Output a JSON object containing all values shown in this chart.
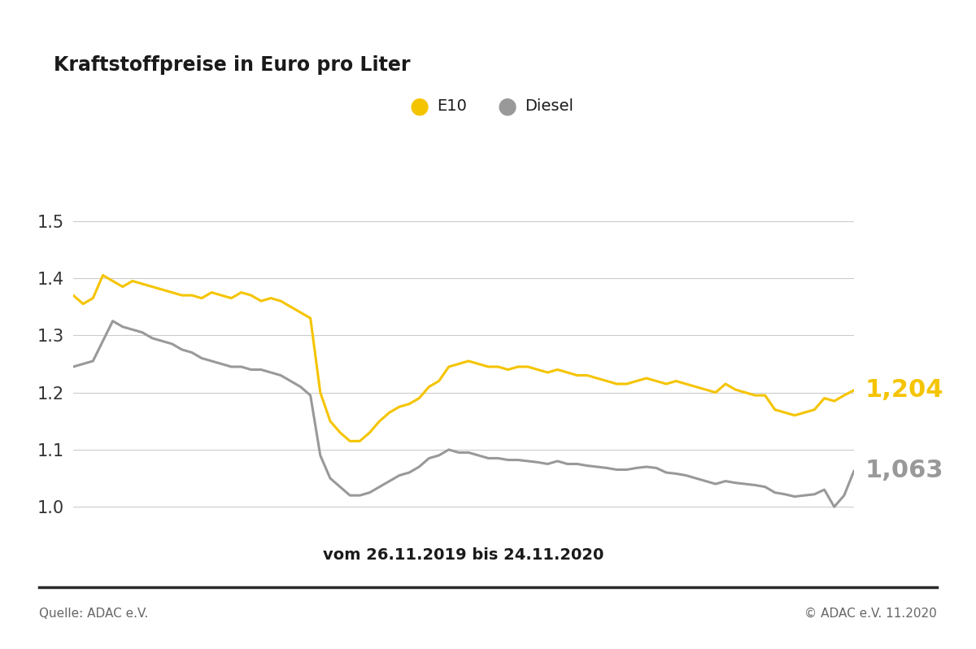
{
  "title": "Kraftstoffpreise in Euro pro Liter",
  "xlabel": "vom 26.11.2019 bis 24.11.2020",
  "legend_e10": "E10",
  "legend_diesel": "Diesel",
  "e10_color": "#F5C400",
  "diesel_color": "#999999",
  "background_color": "#ffffff",
  "ylim": [
    0.95,
    1.58
  ],
  "yticks": [
    1.0,
    1.1,
    1.2,
    1.3,
    1.4,
    1.5
  ],
  "e10_final_label": "1,204",
  "diesel_final_label": "1,063",
  "source_left": "Quelle: ADAC e.V.",
  "source_right": "© ADAC e.V. 11.2020",
  "e10_values": [
    1.37,
    1.355,
    1.365,
    1.405,
    1.395,
    1.385,
    1.395,
    1.39,
    1.385,
    1.38,
    1.375,
    1.37,
    1.37,
    1.365,
    1.375,
    1.37,
    1.365,
    1.375,
    1.37,
    1.36,
    1.365,
    1.36,
    1.35,
    1.34,
    1.33,
    1.2,
    1.15,
    1.13,
    1.115,
    1.115,
    1.13,
    1.15,
    1.165,
    1.175,
    1.18,
    1.19,
    1.21,
    1.22,
    1.245,
    1.25,
    1.255,
    1.25,
    1.245,
    1.245,
    1.24,
    1.245,
    1.245,
    1.24,
    1.235,
    1.24,
    1.235,
    1.23,
    1.23,
    1.225,
    1.22,
    1.215,
    1.215,
    1.22,
    1.225,
    1.22,
    1.215,
    1.22,
    1.215,
    1.21,
    1.205,
    1.2,
    1.215,
    1.205,
    1.2,
    1.195,
    1.195,
    1.17,
    1.165,
    1.16,
    1.165,
    1.17,
    1.19,
    1.185,
    1.195,
    1.204
  ],
  "diesel_values": [
    1.245,
    1.25,
    1.255,
    1.29,
    1.325,
    1.315,
    1.31,
    1.305,
    1.295,
    1.29,
    1.285,
    1.275,
    1.27,
    1.26,
    1.255,
    1.25,
    1.245,
    1.245,
    1.24,
    1.24,
    1.235,
    1.23,
    1.22,
    1.21,
    1.195,
    1.09,
    1.05,
    1.035,
    1.02,
    1.02,
    1.025,
    1.035,
    1.045,
    1.055,
    1.06,
    1.07,
    1.085,
    1.09,
    1.1,
    1.095,
    1.095,
    1.09,
    1.085,
    1.085,
    1.082,
    1.082,
    1.08,
    1.078,
    1.075,
    1.08,
    1.075,
    1.075,
    1.072,
    1.07,
    1.068,
    1.065,
    1.065,
    1.068,
    1.07,
    1.068,
    1.06,
    1.058,
    1.055,
    1.05,
    1.045,
    1.04,
    1.045,
    1.042,
    1.04,
    1.038,
    1.035,
    1.025,
    1.022,
    1.018,
    1.02,
    1.022,
    1.03,
    1.0,
    1.02,
    1.063
  ]
}
